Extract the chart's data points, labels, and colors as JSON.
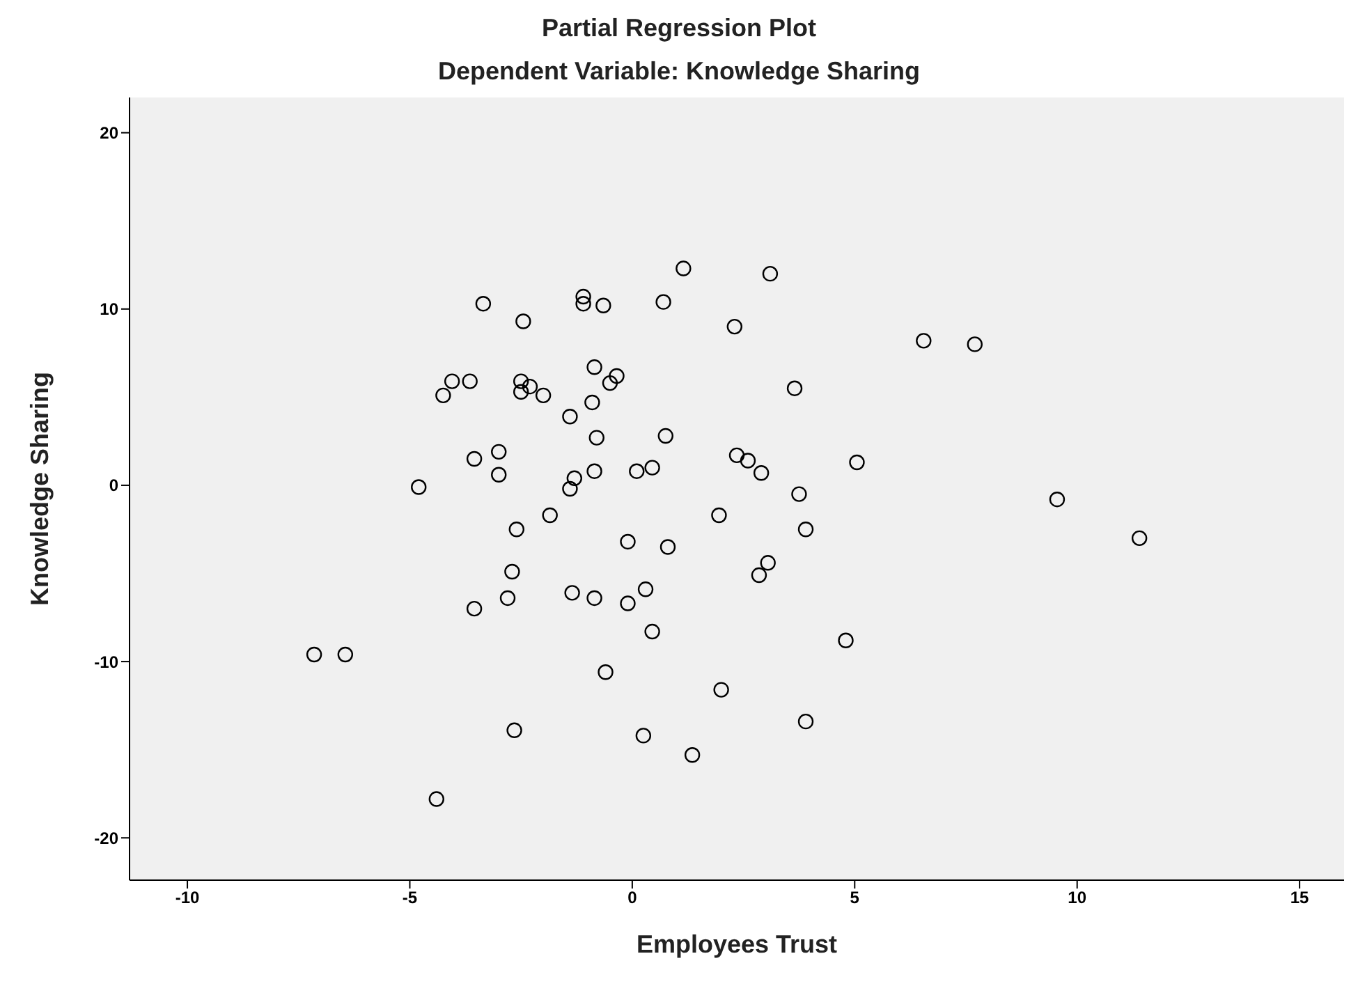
{
  "chart_data": {
    "type": "scatter",
    "title": "Partial Regression Plot",
    "subtitle": "Dependent Variable: Knowledge Sharing",
    "xlabel": "Employees Trust",
    "ylabel": "Knowledge Sharing",
    "x": [
      1.15,
      3.1,
      -1.1,
      -1.1,
      -3.35,
      -0.65,
      0.7,
      -2.45,
      2.3,
      6.55,
      7.7,
      -4.05,
      -3.65,
      -4.25,
      -2.5,
      -2.3,
      -2.5,
      -2,
      -0.85,
      -0.35,
      -0.5,
      -0.9,
      -1.4,
      3.65,
      -0.8,
      0.75,
      -3,
      -3.55,
      2.35,
      2.6,
      5.05,
      -3,
      -1.3,
      -0.85,
      0.1,
      0.45,
      2.9,
      -4.8,
      -1.4,
      3.75,
      9.55,
      -1.85,
      -2.6,
      1.95,
      3.9,
      11.4,
      -0.1,
      0.8,
      3.05,
      -2.7,
      2.85,
      -1.35,
      -0.85,
      0.3,
      -2.8,
      -0.1,
      -3.55,
      0.45,
      4.8,
      -7.15,
      -6.45,
      -0.6,
      2,
      3.9,
      -2.65,
      0.25,
      1.35,
      -4.4
    ],
    "values": [
      12.3,
      12,
      10.7,
      10.3,
      10.3,
      10.2,
      10.4,
      9.3,
      9,
      8.2,
      8,
      5.9,
      5.9,
      5.1,
      5.9,
      5.6,
      5.3,
      5.1,
      6.7,
      6.2,
      5.8,
      4.7,
      3.9,
      5.5,
      2.7,
      2.8,
      1.9,
      1.5,
      1.7,
      1.4,
      1.3,
      0.6,
      0.4,
      0.8,
      0.8,
      1,
      0.7,
      -0.1,
      -0.2,
      -0.5,
      -0.8,
      -1.7,
      -2.5,
      -1.7,
      -2.5,
      -3,
      -3.2,
      -3.5,
      -4.4,
      -4.9,
      -5.1,
      -6.1,
      -6.4,
      -5.9,
      -6.4,
      -6.7,
      -7,
      -8.3,
      -8.8,
      -9.6,
      -9.6,
      -10.6,
      -11.6,
      -13.4,
      -13.9,
      -14.2,
      -15.3,
      -17.8
    ],
    "color": "#000000",
    "marker": "circle",
    "grid": false,
    "xlim": [
      -11.3,
      16
    ],
    "xticks": [
      -10,
      -5,
      0,
      5,
      10,
      15
    ],
    "ylim": [
      -22.4,
      22
    ],
    "yticks": [
      -20,
      -10,
      0,
      10,
      20
    ]
  }
}
